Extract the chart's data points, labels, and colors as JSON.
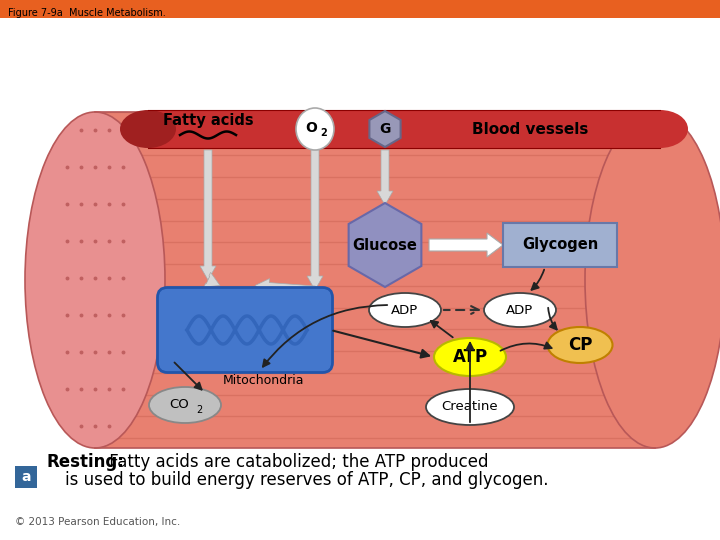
{
  "title": "Figure 7-9a  Muscle Metabolism.",
  "background_color": "#ffffff",
  "top_bar_color": "#e86020",
  "muscle_body_color": "#e88070",
  "muscle_left_cap_color": "#e89090",
  "muscle_stripe_color": "#d06858",
  "blood_vessel_color": "#c83030",
  "blood_vessel_label": "Blood vessels",
  "fatty_acids_label": "Fatty acids",
  "glucose_label": "Glucose",
  "glycogen_label": "Glycogen",
  "mitochondria_label": "Mitochondria",
  "atp_label": "ATP",
  "adp_label": "ADP",
  "cp_label": "CP",
  "co2_label_main": "CO",
  "co2_label_sub": "2",
  "creatine_label": "Creatine",
  "o2_label_main": "O",
  "o2_label_sub": "2",
  "g_label": "G",
  "bottom_text_a": "Resting:",
  "bottom_text_b": " Fatty acids are catabolized; the ATP produced",
  "bottom_text_c": "is used to build energy reserves of ATP, CP, and glycogen.",
  "copyright": "© 2013 Pearson Education, Inc.",
  "glucose_hex_color": "#9090c0",
  "glycogen_box_color": "#a0b0d0",
  "mito_fill_color": "#4477cc",
  "mito_inner_color": "#6699dd",
  "mito_wave_color": "#3366bb",
  "atp_color": "#ffff00",
  "cp_color": "#f0c050",
  "adp_bg_color": "#ffffff",
  "co2_bg_color": "#c0c0c0",
  "creatine_bg_color": "#ffffff",
  "a_box_color": "#336699",
  "arrow_white_color": "#d8d8d8",
  "arrow_dark_color": "#333333"
}
